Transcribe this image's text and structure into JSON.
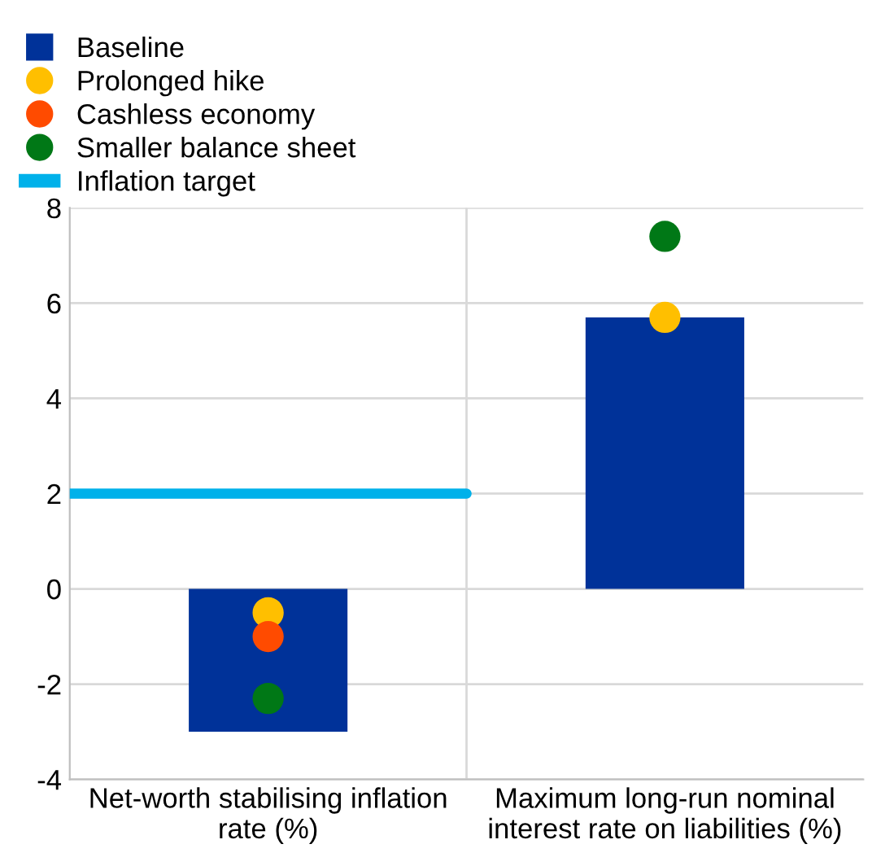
{
  "chart_data": {
    "type": "bar",
    "categories": [
      "Net-worth stabilising inflation rate (%)",
      "Maximum long-run nominal interest rate on liabilities (%)"
    ],
    "series": [
      {
        "name": "Baseline",
        "color": "#003299",
        "values": [
          -3.0,
          5.7
        ]
      },
      {
        "name": "Prolonged hike",
        "type": "scatter",
        "color": "#ffbf00",
        "values": [
          -0.5,
          5.7
        ]
      },
      {
        "name": "Cashless economy",
        "type": "scatter",
        "color": "#ff4b00",
        "values": [
          -1.0,
          null
        ]
      },
      {
        "name": "Smaller balance sheet",
        "type": "scatter",
        "color": "#007816",
        "values": [
          -2.3,
          7.4
        ]
      }
    ],
    "ref_lines": [
      {
        "axis": "y",
        "value": 2,
        "label": "Inflation target",
        "color": "#00b1ea"
      }
    ],
    "ylim": [
      -4,
      8
    ],
    "yticks": [
      -4,
      -2,
      0,
      2,
      4,
      6,
      8
    ],
    "grid": true,
    "legend": "top left",
    "marker": "circle"
  }
}
